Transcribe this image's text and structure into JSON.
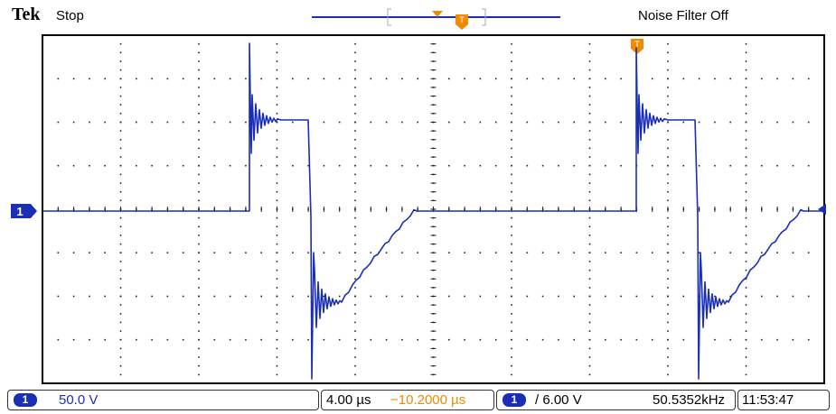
{
  "header": {
    "brand": "Tek",
    "run_state": "Stop",
    "noise_filter": "Noise Filter Off"
  },
  "channel_marker": {
    "label": "1"
  },
  "status": {
    "ch1_badge": "1",
    "ch1_scale": "50.0 V",
    "time_scale": "4.00 µs",
    "trigger_position": "−10.2000 µs",
    "trig_badge": "1",
    "trigger_level": "/ 6.00 V",
    "frequency": "50.5352kHz",
    "clock": "11:53:47"
  },
  "colors": {
    "trace": "#1a2fb5",
    "trigger_marker": "#f08a00",
    "grid": "#000000"
  }
}
